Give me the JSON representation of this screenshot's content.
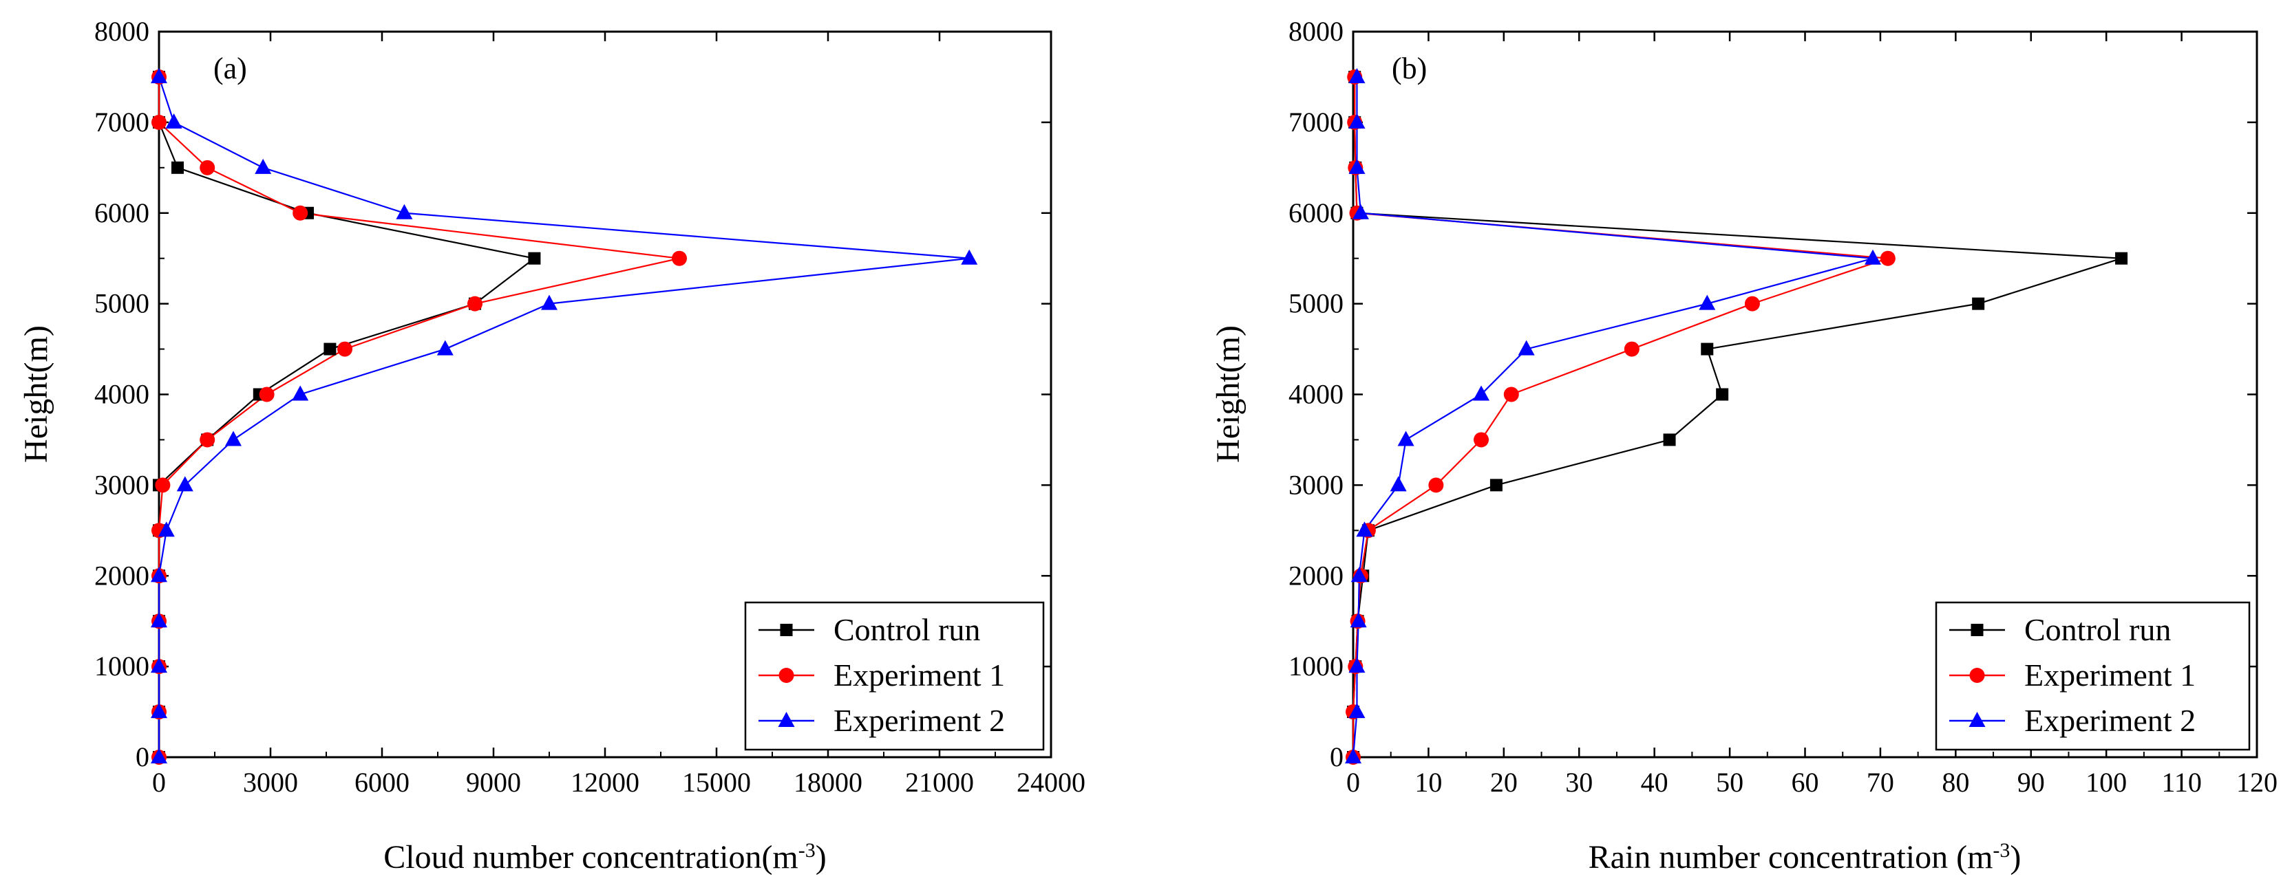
{
  "chart_data": [
    {
      "id": "a",
      "type": "line",
      "panel_label": "(a)",
      "xlabel": "Cloud number concentration(m",
      "xlabel_sup": "-3",
      "xlabel_suffix": ")",
      "ylabel": "Height(m)",
      "xlim": [
        0,
        24000
      ],
      "ylim": [
        0,
        8000
      ],
      "xticks": [
        0,
        3000,
        6000,
        9000,
        12000,
        15000,
        18000,
        21000,
        24000
      ],
      "yticks": [
        0,
        1000,
        2000,
        3000,
        4000,
        5000,
        6000,
        7000,
        8000
      ],
      "legend_position": "bottom-right",
      "series": [
        {
          "name": "Control run",
          "color": "#000000",
          "marker": "square",
          "points": [
            [
              0,
              0
            ],
            [
              0,
              500
            ],
            [
              0,
              1000
            ],
            [
              0,
              1500
            ],
            [
              0,
              2000
            ],
            [
              0,
              2500
            ],
            [
              0,
              3000
            ],
            [
              1300,
              3500
            ],
            [
              2700,
              4000
            ],
            [
              4600,
              4500
            ],
            [
              8500,
              5000
            ],
            [
              10100,
              5500
            ],
            [
              4000,
              6000
            ],
            [
              500,
              6500
            ],
            [
              0,
              7000
            ],
            [
              0,
              7500
            ]
          ]
        },
        {
          "name": "Experiment 1",
          "color": "#ff0000",
          "marker": "circle",
          "points": [
            [
              0,
              0
            ],
            [
              0,
              500
            ],
            [
              0,
              1000
            ],
            [
              0,
              1500
            ],
            [
              0,
              2000
            ],
            [
              0,
              2500
            ],
            [
              100,
              3000
            ],
            [
              1300,
              3500
            ],
            [
              2900,
              4000
            ],
            [
              5000,
              4500
            ],
            [
              8500,
              5000
            ],
            [
              14000,
              5500
            ],
            [
              3800,
              6000
            ],
            [
              1300,
              6500
            ],
            [
              0,
              7000
            ],
            [
              0,
              7500
            ]
          ]
        },
        {
          "name": "Experiment 2",
          "color": "#0000ff",
          "marker": "triangle",
          "points": [
            [
              0,
              0
            ],
            [
              0,
              500
            ],
            [
              0,
              1000
            ],
            [
              0,
              1500
            ],
            [
              0,
              2000
            ],
            [
              200,
              2500
            ],
            [
              700,
              3000
            ],
            [
              2000,
              3500
            ],
            [
              3800,
              4000
            ],
            [
              7700,
              4500
            ],
            [
              10500,
              5000
            ],
            [
              21800,
              5500
            ],
            [
              6600,
              6000
            ],
            [
              2800,
              6500
            ],
            [
              400,
              7000
            ],
            [
              0,
              7500
            ]
          ]
        }
      ]
    },
    {
      "id": "b",
      "type": "line",
      "panel_label": "(b)",
      "xlabel": "Rain number concentration (m",
      "xlabel_sup": "-3",
      "xlabel_suffix": ")",
      "ylabel": "Height(m)",
      "xlim": [
        0,
        120
      ],
      "ylim": [
        0,
        8000
      ],
      "xticks": [
        0,
        10,
        20,
        30,
        40,
        50,
        60,
        70,
        80,
        90,
        100,
        110,
        120
      ],
      "yticks": [
        0,
        1000,
        2000,
        3000,
        4000,
        5000,
        6000,
        7000,
        8000
      ],
      "legend_position": "bottom-right",
      "series": [
        {
          "name": "Control run",
          "color": "#000000",
          "marker": "square",
          "points": [
            [
              0,
              0
            ],
            [
              0,
              500
            ],
            [
              0.3,
              1000
            ],
            [
              0.6,
              1500
            ],
            [
              1.3,
              2000
            ],
            [
              2,
              2500
            ],
            [
              19,
              3000
            ],
            [
              42,
              3500
            ],
            [
              49,
              4000
            ],
            [
              47,
              4500
            ],
            [
              83,
              5000
            ],
            [
              102,
              5500
            ],
            [
              0.5,
              6000
            ],
            [
              0.3,
              6500
            ],
            [
              0.2,
              7000
            ],
            [
              0.2,
              7500
            ]
          ]
        },
        {
          "name": "Experiment 1",
          "color": "#ff0000",
          "marker": "circle",
          "points": [
            [
              0,
              0
            ],
            [
              0,
              500
            ],
            [
              0.3,
              1000
            ],
            [
              0.6,
              1500
            ],
            [
              1,
              2000
            ],
            [
              2,
              2500
            ],
            [
              11,
              3000
            ],
            [
              17,
              3500
            ],
            [
              21,
              4000
            ],
            [
              37,
              4500
            ],
            [
              53,
              5000
            ],
            [
              71,
              5500
            ],
            [
              0.5,
              6000
            ],
            [
              0.3,
              6500
            ],
            [
              0.2,
              7000
            ],
            [
              0.2,
              7500
            ]
          ]
        },
        {
          "name": "Experiment 2",
          "color": "#0000ff",
          "marker": "triangle",
          "points": [
            [
              0,
              0
            ],
            [
              0.5,
              500
            ],
            [
              0.5,
              1000
            ],
            [
              0.7,
              1500
            ],
            [
              0.8,
              2000
            ],
            [
              1.5,
              2500
            ],
            [
              6,
              3000
            ],
            [
              7,
              3500
            ],
            [
              17,
              4000
            ],
            [
              23,
              4500
            ],
            [
              47,
              5000
            ],
            [
              69,
              5500
            ],
            [
              1,
              6000
            ],
            [
              0.5,
              6500
            ],
            [
              0.5,
              7000
            ],
            [
              0.5,
              7500
            ]
          ]
        }
      ]
    }
  ]
}
